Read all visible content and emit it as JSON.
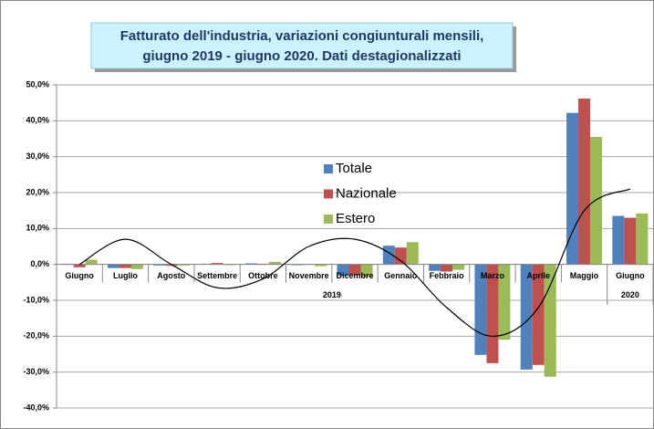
{
  "chart_data": {
    "type": "bar",
    "title": [
      "Fatturato dell'industria, variazioni congiunturali mensili,",
      "giugno 2019 - giugno 2020. Dati destagionalizzati"
    ],
    "categories": [
      "Giugno",
      "Luglio",
      "Agosto",
      "Settembre",
      "Ottobre",
      "Novembre",
      "Dicembre",
      "Gennaio",
      "Febbraio",
      "Marzo",
      "Aprile",
      "Maggio",
      "Giugno"
    ],
    "year_groups": [
      {
        "label": "2019",
        "from": 0,
        "to": 11
      },
      {
        "label": "2020",
        "from": 12,
        "to": 12
      }
    ],
    "series": [
      {
        "name": "Totale",
        "color": "#4f81bd",
        "values": [
          0.2,
          -1.0,
          -0.3,
          0.2,
          0.3,
          -0.2,
          -3.2,
          5.2,
          -1.8,
          -25.2,
          -29.3,
          42.2,
          13.5
        ]
      },
      {
        "name": "Nazionale",
        "color": "#c0504d",
        "values": [
          -0.8,
          -1.0,
          -0.4,
          0.4,
          0.2,
          0.1,
          -3.0,
          4.7,
          -2.0,
          -27.5,
          -28.0,
          46.2,
          13.0
        ]
      },
      {
        "name": "Estero",
        "color": "#9bbb59",
        "values": [
          1.3,
          -1.3,
          -0.3,
          -0.2,
          0.7,
          -0.5,
          -3.5,
          6.2,
          -1.5,
          -21.0,
          -31.3,
          35.5,
          14.2
        ]
      }
    ],
    "trendline": {
      "color": "#000000",
      "values": [
        0,
        7,
        0,
        -6.5,
        -4,
        5,
        7,
        1,
        -12,
        -20,
        -12,
        15,
        21
      ]
    },
    "ylim": [
      -40,
      50
    ],
    "yticks": [
      {
        "value": -40,
        "label": "-40,0%"
      },
      {
        "value": -30,
        "label": "-30,0%"
      },
      {
        "value": -20,
        "label": "-20,0%"
      },
      {
        "value": -10,
        "label": "-10,0%"
      },
      {
        "value": 0,
        "label": "0,0%"
      },
      {
        "value": 10,
        "label": "10,0%"
      },
      {
        "value": 20,
        "label": "20,0%"
      },
      {
        "value": 30,
        "label": "30,0%"
      },
      {
        "value": 40,
        "label": "40,0%"
      },
      {
        "value": 50,
        "label": "50,0%"
      }
    ],
    "grid": true,
    "legend": "center"
  }
}
